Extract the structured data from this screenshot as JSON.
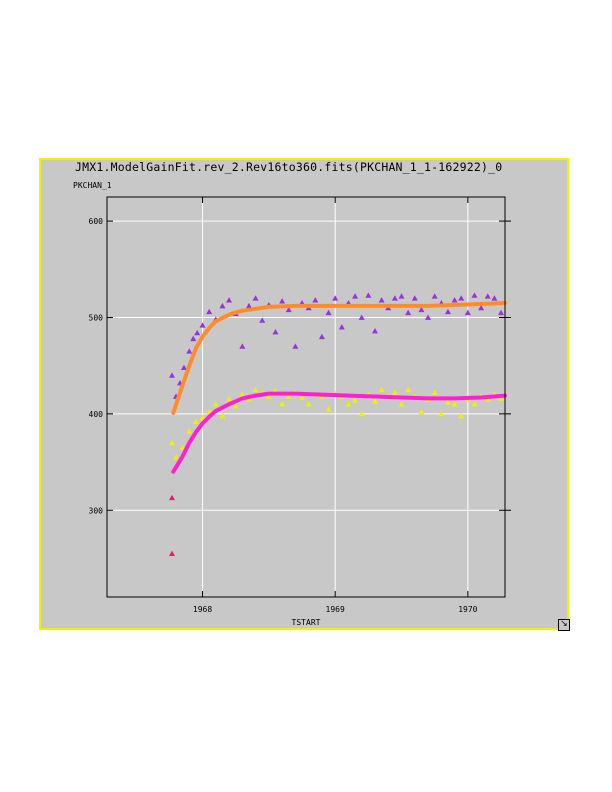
{
  "window": {
    "title": "JMX1.ModelGainFit.rev_2.Rev16to360.fits(PKCHAN_1_1-162922)_0",
    "resize_icon": "resize-arrow-icon"
  },
  "colors": {
    "panel_bg": "#c8c8c8",
    "panel_border": "#f2f200",
    "grid": "#ffffff",
    "purple_points": "#9a30e0",
    "yellow_points": "#f0f000",
    "orange_fit": "#ff8c28",
    "magenta_fit": "#ff20d0"
  },
  "chart_data": {
    "type": "scatter",
    "xlabel": "TSTART",
    "ylabel": "PKCHAN_1",
    "xlim": [
      1967.28,
      1970.28
    ],
    "ylim": [
      210,
      625
    ],
    "xticks": [
      1968,
      1969,
      1970
    ],
    "yticks": [
      300,
      400,
      500,
      600
    ],
    "grid": true,
    "series": [
      {
        "kind": "points",
        "marker": "triangle",
        "color": "#9a30e0",
        "x": [
          1967.77,
          1967.8,
          1967.83,
          1967.86,
          1967.9,
          1967.93,
          1967.96,
          1968.0,
          1968.05,
          1968.1,
          1968.15,
          1968.2,
          1968.25,
          1968.3,
          1968.35,
          1968.4,
          1968.45,
          1968.5,
          1968.55,
          1968.6,
          1968.65,
          1968.7,
          1968.75,
          1968.8,
          1968.85,
          1968.9,
          1968.95,
          1969.0,
          1969.05,
          1969.1,
          1969.15,
          1969.2,
          1969.25,
          1969.3,
          1969.35,
          1969.4,
          1969.45,
          1969.5,
          1969.55,
          1969.6,
          1969.65,
          1969.7,
          1969.75,
          1969.8,
          1969.85,
          1969.9,
          1969.95,
          1970.0,
          1970.05,
          1970.1,
          1970.15,
          1970.2,
          1970.25
        ],
        "y": [
          440,
          418,
          432,
          448,
          465,
          478,
          484,
          492,
          506,
          498,
          512,
          518,
          504,
          470,
          512,
          520,
          497,
          513,
          485,
          517,
          508,
          470,
          515,
          510,
          518,
          480,
          505,
          520,
          490,
          515,
          522,
          500,
          523,
          486,
          518,
          510,
          520,
          522,
          505,
          520,
          508,
          500,
          522,
          515,
          506,
          518,
          520,
          505,
          523,
          510,
          522,
          520,
          505
        ]
      },
      {
        "kind": "points",
        "marker": "triangle",
        "color": "#f0f000",
        "x": [
          1967.77,
          1967.8,
          1967.85,
          1967.9,
          1967.95,
          1968.0,
          1968.05,
          1968.1,
          1968.15,
          1968.2,
          1968.25,
          1968.3,
          1968.35,
          1968.4,
          1968.45,
          1968.5,
          1968.55,
          1968.6,
          1968.65,
          1968.7,
          1968.75,
          1968.8,
          1968.85,
          1968.9,
          1968.95,
          1969.0,
          1969.05,
          1969.1,
          1969.15,
          1969.2,
          1969.25,
          1969.3,
          1969.35,
          1969.4,
          1969.45,
          1969.5,
          1969.55,
          1969.6,
          1969.65,
          1969.7,
          1969.75,
          1969.8,
          1969.85,
          1969.9,
          1969.95,
          1970.0,
          1970.05,
          1970.1,
          1970.15,
          1970.2,
          1970.25
        ],
        "y": [
          370,
          355,
          365,
          382,
          392,
          396,
          402,
          410,
          398,
          415,
          408,
          420,
          415,
          425,
          422,
          418,
          424,
          410,
          418,
          422,
          417,
          410,
          420,
          418,
          405,
          421,
          418,
          410,
          414,
          400,
          420,
          413,
          425,
          418,
          422,
          410,
          425,
          418,
          402,
          415,
          422,
          400,
          412,
          410,
          398,
          415,
          410,
          418,
          415,
          420,
          416
        ]
      },
      {
        "kind": "fit",
        "color": "#ff8c28",
        "x": [
          1967.78,
          1967.85,
          1967.9,
          1967.95,
          1968.0,
          1968.05,
          1968.1,
          1968.2,
          1968.3,
          1968.4,
          1968.5,
          1968.7,
          1968.9,
          1969.1,
          1969.3,
          1969.5,
          1969.7,
          1969.9,
          1970.1,
          1970.28
        ],
        "y": [
          401,
          430,
          450,
          468,
          480,
          489,
          496,
          503,
          507,
          509,
          511,
          512,
          512,
          512,
          512,
          512,
          512,
          513,
          514,
          515
        ]
      },
      {
        "kind": "fit",
        "color": "#ff20d0",
        "x": [
          1967.78,
          1967.85,
          1967.9,
          1967.95,
          1968.0,
          1968.05,
          1968.1,
          1968.2,
          1968.3,
          1968.4,
          1968.5,
          1968.7,
          1968.9,
          1969.1,
          1969.3,
          1969.5,
          1969.7,
          1969.9,
          1970.1,
          1970.28
        ],
        "y": [
          340,
          356,
          370,
          381,
          390,
          397,
          403,
          410,
          416,
          419,
          421,
          421,
          420,
          419,
          418,
          417,
          416,
          416,
          417,
          419
        ]
      },
      {
        "kind": "points",
        "marker": "triangle",
        "color": "#e02070",
        "x": [
          1967.77,
          1967.77
        ],
        "y": [
          313,
          255
        ]
      }
    ]
  }
}
